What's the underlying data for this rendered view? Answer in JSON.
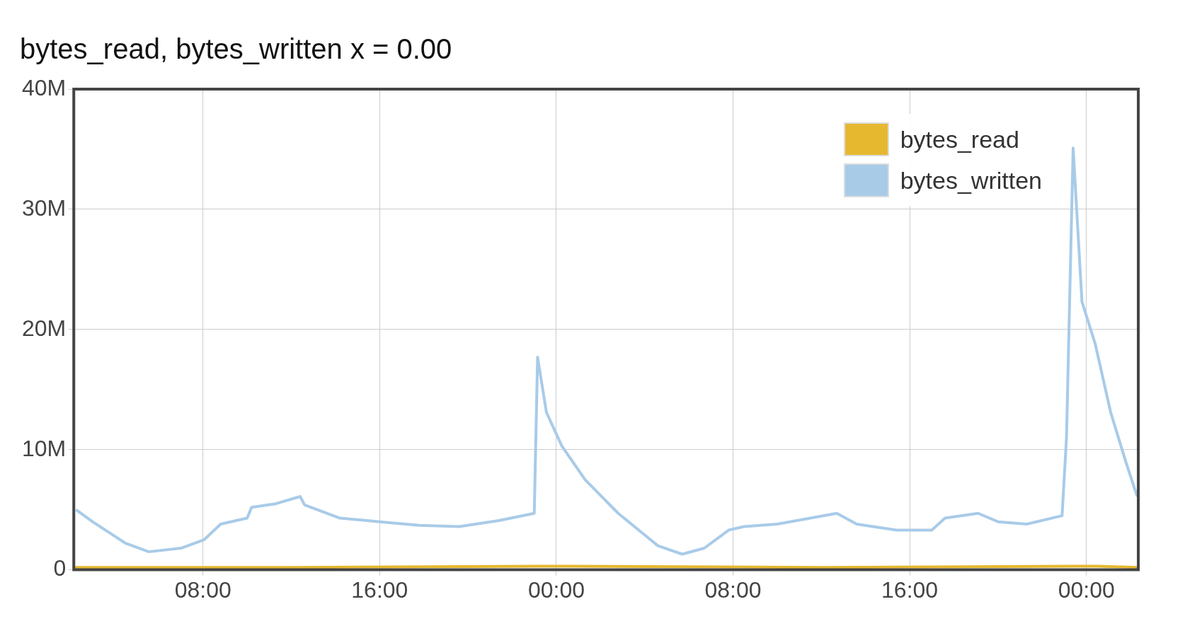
{
  "chart_data": {
    "type": "line",
    "title": "bytes_read, bytes_written x = 0.00",
    "xlim": [
      "--01-01T02:09",
      "--01-03T02:21"
    ],
    "xticks": [
      {
        "value": "--01-01T08:00",
        "label": "08:00"
      },
      {
        "value": "--01-01T16:00",
        "label": "16:00"
      },
      {
        "value": "--01-02T00:00",
        "label": "00:00"
      },
      {
        "value": "--01-02T08:00",
        "label": "08:00"
      },
      {
        "value": "--01-02T16:00",
        "label": "16:00"
      },
      {
        "value": "--01-03T00:00",
        "label": "00:00"
      }
    ],
    "ylim": [
      0,
      40000000
    ],
    "yticks": [
      0,
      {
        "value": 10000000,
        "label": "10M"
      },
      {
        "value": 20000000,
        "label": "20M"
      },
      {
        "value": 30000000,
        "label": "30M"
      },
      {
        "value": 40000000,
        "label": "40M"
      }
    ],
    "grid": true,
    "legend": "top right",
    "series": [
      {
        "name": "bytes_read",
        "color": "#e6b830",
        "x": [
          "--01-01T02:09",
          "--01-01T12:00",
          "--01-01T23:30",
          "--01-02T00:30",
          "--01-02T12:00",
          "--01-02T23:30",
          "--01-03T00:30",
          "--01-03T02:21"
        ],
        "values": [
          200000,
          200000,
          300000,
          300000,
          200000,
          300000,
          300000,
          200000
        ]
      },
      {
        "name": "bytes_written",
        "color": "#a8cbe8",
        "x": [
          "--01-01T02:15",
          "--01-01T03:00",
          "--01-01T04:30",
          "--01-01T05:33",
          "--01-01T07:00",
          "--01-01T08:03",
          "--01-01T08:48",
          "--01-01T10:00",
          "--01-01T10:12",
          "--01-01T11:18",
          "--01-01T12:24",
          "--01-01T12:36",
          "--01-01T14:12",
          "--01-01T16:00",
          "--01-01T17:48",
          "--01-01T19:36",
          "--01-01T21:24",
          "--01-01T23:00",
          "--01-01T23:09",
          "--01-01T23:33",
          "--01-02T00:15",
          "--01-02T01:18",
          "--01-02T02:48",
          "--01-02T04:36",
          "--01-02T05:42",
          "--01-02T06:42",
          "--01-02T07:48",
          "--01-02T08:30",
          "--01-02T10:00",
          "--01-02T12:42",
          "--01-02T13:36",
          "--01-02T15:24",
          "--01-02T17:00",
          "--01-02T17:36",
          "--01-02T19:06",
          "--01-02T20:00",
          "--01-02T21:18",
          "--01-02T22:54",
          "--01-02T23:06",
          "--01-02T23:24",
          "--01-02T23:48",
          "--01-03T00:24",
          "--01-03T01:06",
          "--01-03T01:48",
          "--01-03T02:18"
        ],
        "values": [
          5000000,
          4000000,
          2200000,
          1500000,
          1800000,
          2500000,
          3800000,
          4300000,
          5200000,
          5500000,
          6100000,
          5400000,
          4300000,
          4000000,
          3700000,
          3600000,
          4100000,
          4700000,
          17700000,
          13100000,
          10300000,
          7500000,
          4700000,
          2000000,
          1300000,
          1800000,
          3300000,
          3600000,
          3800000,
          4700000,
          3800000,
          3300000,
          3300000,
          4300000,
          4700000,
          4000000,
          3800000,
          4500000,
          11000000,
          35100000,
          22300000,
          18800000,
          13100000,
          8900000,
          6100000
        ]
      }
    ]
  }
}
